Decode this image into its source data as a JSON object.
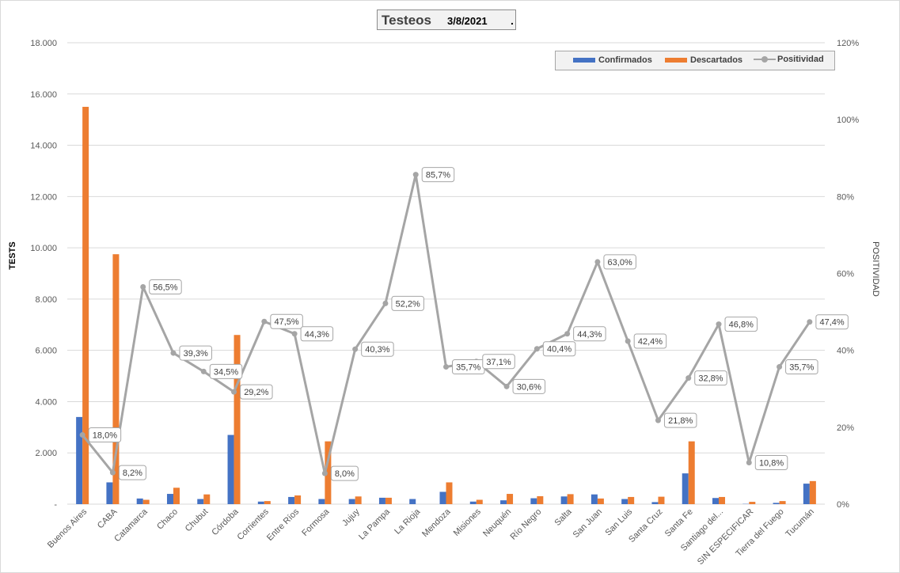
{
  "chart_data": {
    "type": "bar",
    "title": "Testeos",
    "date": "3/8/2021",
    "title_suffix": ".",
    "ylabel": "TESTS",
    "y2label": "POSITIVIDAD",
    "ylim": [
      0,
      18000
    ],
    "y2lim": [
      0,
      120
    ],
    "yticks": [
      "-",
      "2.000",
      "4.000",
      "6.000",
      "8.000",
      "10.000",
      "12.000",
      "14.000",
      "16.000",
      "18.000"
    ],
    "y2ticks": [
      "0%",
      "20%",
      "40%",
      "60%",
      "80%",
      "100%",
      "120%"
    ],
    "grid": true,
    "legend_position": "top-right",
    "categories": [
      "Buenos Aires",
      "CABA",
      "Catamarca",
      "Chaco",
      "Chubut",
      "Córdoba",
      "Corrientes",
      "Entre Ríos",
      "Formosa",
      "Jujuy",
      "La Pampa",
      "La Rioja",
      "Mendoza",
      "Misiones",
      "Neuquén",
      "Río Negro",
      "Salta",
      "San Juan",
      "San Luis",
      "Santa Cruz",
      "Santa Fe",
      "Santiago del...",
      "SIN ESPECIFICAR",
      "Tierra del Fuego",
      "Tucumán"
    ],
    "series": [
      {
        "name": "Confirmados",
        "kind": "bar",
        "axis": "left",
        "color": "#4472c4",
        "values": [
          3400,
          850,
          220,
          400,
          200,
          2700,
          100,
          280,
          200,
          200,
          250,
          200,
          480,
          100,
          150,
          230,
          300,
          380,
          200,
          80,
          1200,
          240,
          10,
          50,
          800
        ]
      },
      {
        "name": "Descartados",
        "kind": "bar",
        "axis": "left",
        "color": "#ed7d31",
        "values": [
          15500,
          9750,
          170,
          640,
          380,
          6600,
          120,
          340,
          2450,
          300,
          250,
          0,
          850,
          170,
          400,
          310,
          390,
          220,
          280,
          290,
          2450,
          280,
          90,
          120,
          900
        ]
      },
      {
        "name": "Positividad",
        "kind": "line",
        "axis": "right",
        "color": "#a5a5a5",
        "values": [
          18.0,
          8.2,
          56.5,
          39.3,
          34.5,
          29.2,
          47.5,
          44.3,
          8.0,
          40.3,
          52.2,
          85.7,
          35.7,
          37.1,
          30.6,
          40.4,
          44.3,
          63.0,
          42.4,
          21.8,
          32.8,
          46.8,
          10.8,
          35.7,
          47.4
        ],
        "labels": [
          "18,0%",
          "8,2%",
          "56,5%",
          "39,3%",
          "34,5%",
          "29,2%",
          "47,5%",
          "44,3%",
          "8,0%",
          "40,3%",
          "52,2%",
          "85,7%",
          "35,7%",
          "37,1%",
          "30,6%",
          "40,4%",
          "44,3%",
          "63,0%",
          "42,4%",
          "21,8%",
          "32,8%",
          "46,8%",
          "10,8%",
          "35,7%",
          "47,4%"
        ]
      }
    ]
  }
}
